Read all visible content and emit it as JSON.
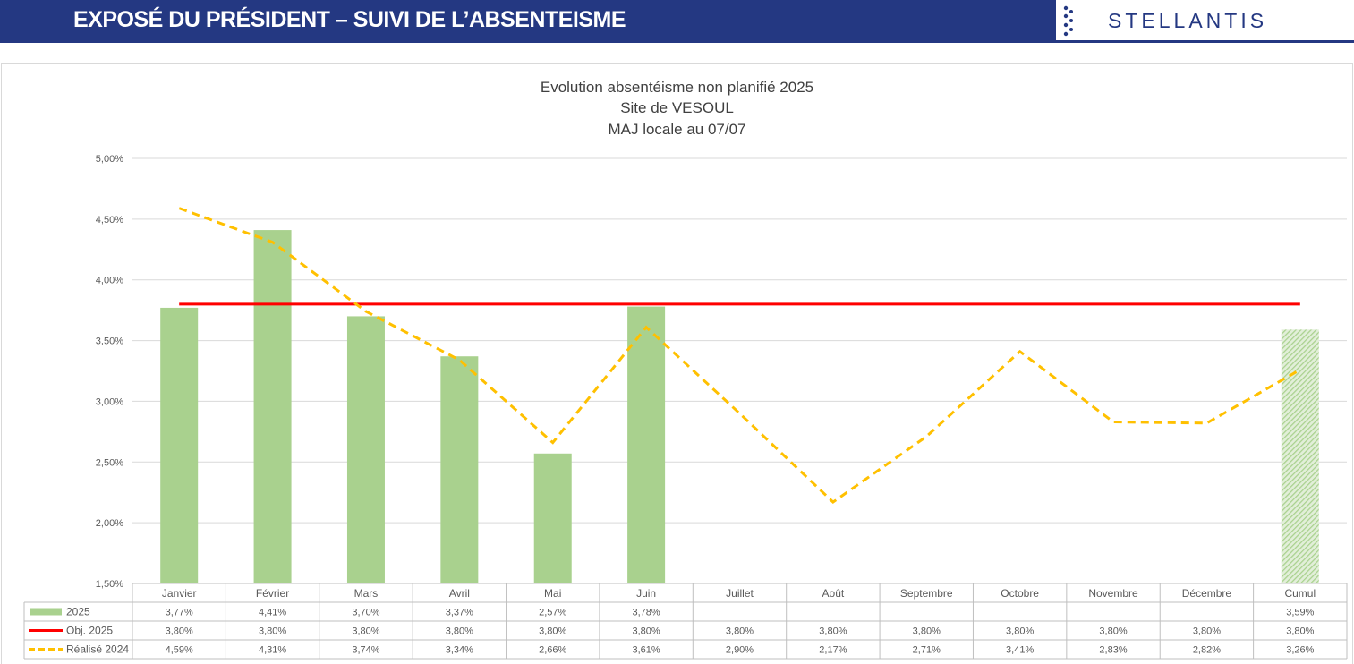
{
  "header": {
    "title": "EXPOSÉ DU PRÉSIDENT – SUIVI DE L’ABSENTEISME",
    "logo_text": "STELLANTIS",
    "logo_icon": "stellantis-dots-logo"
  },
  "colors": {
    "header_blue": "#243882",
    "bar_green": "#a9d18e",
    "objective_red": "#ff0000",
    "realise_2024_yellow": "#ffc000",
    "grid": "#d9d9d9",
    "text": "#595959"
  },
  "chart_data": {
    "type": "bar",
    "title": "Evolution absentéisme non planifié 2025",
    "subtitle_lines": [
      "Site de VESOUL",
      "MAJ locale au 07/07"
    ],
    "categories": [
      "Janvier",
      "Février",
      "Mars",
      "Avril",
      "Mai",
      "Juin",
      "Juillet",
      "Août",
      "Septembre",
      "Octobre",
      "Novembre",
      "Décembre",
      "Cumul"
    ],
    "y_ticks": [
      "5,00%",
      "4,50%",
      "4,00%",
      "3,50%",
      "3,00%",
      "2,50%",
      "2,00%",
      "1,50%"
    ],
    "ylim": [
      1.5,
      5.0
    ],
    "grid": true,
    "legend_placement": "data-table",
    "series": [
      {
        "name": "2025",
        "type": "bar",
        "values": [
          3.77,
          4.41,
          3.7,
          3.37,
          2.57,
          3.78,
          null,
          null,
          null,
          null,
          null,
          null,
          3.59
        ],
        "labels": [
          "3,77%",
          "4,41%",
          "3,70%",
          "3,37%",
          "2,57%",
          "3,78%",
          "",
          "",
          "",
          "",
          "",
          "",
          "3,59%"
        ],
        "cumul_pattern": "hatched"
      },
      {
        "name": "Obj. 2025",
        "type": "line",
        "style": "solid",
        "values": [
          3.8,
          3.8,
          3.8,
          3.8,
          3.8,
          3.8,
          3.8,
          3.8,
          3.8,
          3.8,
          3.8,
          3.8,
          3.8
        ],
        "labels": [
          "3,80%",
          "3,80%",
          "3,80%",
          "3,80%",
          "3,80%",
          "3,80%",
          "3,80%",
          "3,80%",
          "3,80%",
          "3,80%",
          "3,80%",
          "3,80%",
          "3,80%"
        ]
      },
      {
        "name": "Réalisé 2024",
        "type": "line",
        "style": "dashed",
        "values": [
          4.59,
          4.31,
          3.74,
          3.34,
          2.66,
          3.61,
          2.9,
          2.17,
          2.71,
          3.41,
          2.83,
          2.82,
          3.26
        ],
        "labels": [
          "4,59%",
          "4,31%",
          "3,74%",
          "3,34%",
          "2,66%",
          "3,61%",
          "2,90%",
          "2,17%",
          "2,71%",
          "3,41%",
          "2,83%",
          "2,82%",
          "3,26%"
        ]
      }
    ]
  }
}
